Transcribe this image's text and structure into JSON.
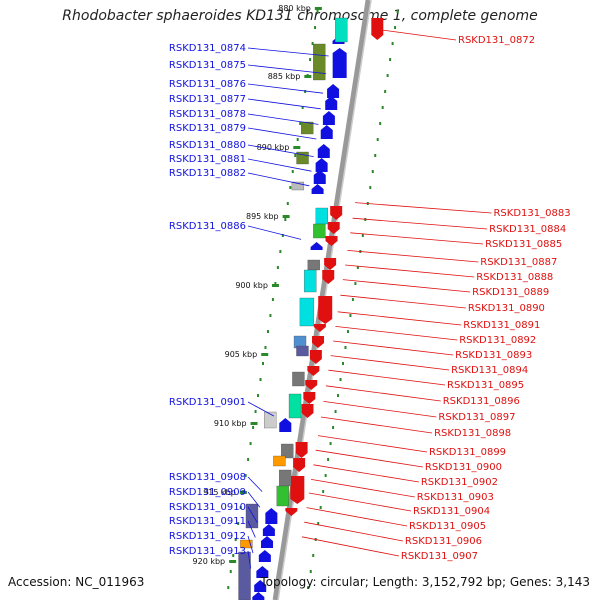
{
  "title": "Rhodobacter sphaeroides KD131 chromosome 1, complete genome",
  "accession": "Accession: NC_011963",
  "topology": "Topology: circular; Length: 3,152,792 bp; Genes: 3,143",
  "colors": {
    "forward": "#1010e0",
    "reverse": "#e01010",
    "backbone": "#999999",
    "tick": "#2a8a2a"
  },
  "ticks": [
    "880 kbp",
    "885 kbp",
    "890 kbp",
    "895 kbp",
    "900 kbp",
    "905 kbp",
    "910 kbp",
    "915 kbp",
    "920 kbp"
  ],
  "left_genes": [
    "RSKD131_0874",
    "RSKD131_0875",
    "RSKD131_0876",
    "RSKD131_0877",
    "RSKD131_0878",
    "RSKD131_0879",
    "RSKD131_0880",
    "RSKD131_0881",
    "RSKD131_0882",
    "RSKD131_0886",
    "RSKD131_0901",
    "RSKD131_0908",
    "RSKD131_0909",
    "RSKD131_0910",
    "RSKD131_0911",
    "RSKD131_0912",
    "RSKD131_0913"
  ],
  "right_genes": [
    "RSKD131_0872",
    "RSKD131_0883",
    "RSKD131_0884",
    "RSKD131_0885",
    "RSKD131_0887",
    "RSKD131_0888",
    "RSKD131_0889",
    "RSKD131_0890",
    "RSKD131_0891",
    "RSKD131_0892",
    "RSKD131_0893",
    "RSKD131_0894",
    "RSKD131_0895",
    "RSKD131_0896",
    "RSKD131_0897",
    "RSKD131_0898",
    "RSKD131_0899",
    "RSKD131_0900",
    "RSKD131_0902",
    "RSKD131_0903",
    "RSKD131_0904",
    "RSKD131_0905",
    "RSKD131_0906",
    "RSKD131_0907"
  ]
}
